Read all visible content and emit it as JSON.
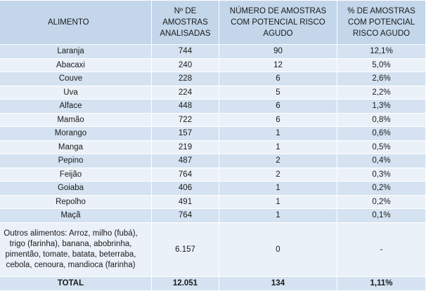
{
  "headers": {
    "alimento": "ALIMENTO",
    "amostras": "Nº DE AMOSTRAS ANALISADAS",
    "risco": "NÚMERO DE AMOSTRAS COM POTENCIAL RISCO AGUDO",
    "percent": "% DE AMOSTRAS COM POTENCIAL RISCO AGUDO"
  },
  "rows": [
    {
      "food": "Laranja",
      "samples": "744",
      "risk": "90",
      "pct": "12,1%"
    },
    {
      "food": "Abacaxi",
      "samples": "240",
      "risk": "12",
      "pct": "5,0%"
    },
    {
      "food": "Couve",
      "samples": "228",
      "risk": "6",
      "pct": "2,6%"
    },
    {
      "food": "Uva",
      "samples": "224",
      "risk": "5",
      "pct": "2,2%"
    },
    {
      "food": "Alface",
      "samples": "448",
      "risk": "6",
      "pct": "1,3%"
    },
    {
      "food": "Mamão",
      "samples": "722",
      "risk": "6",
      "pct": "0,8%"
    },
    {
      "food": "Morango",
      "samples": "157",
      "risk": "1",
      "pct": "0,6%"
    },
    {
      "food": "Manga",
      "samples": "219",
      "risk": "1",
      "pct": "0,5%"
    },
    {
      "food": "Pepino",
      "samples": "487",
      "risk": "2",
      "pct": "0,4%"
    },
    {
      "food": "Feijão",
      "samples": "764",
      "risk": "2",
      "pct": "0,3%"
    },
    {
      "food": "Goiaba",
      "samples": "406",
      "risk": "1",
      "pct": "0,2%"
    },
    {
      "food": "Repolho",
      "samples": "491",
      "risk": "1",
      "pct": "0,2%"
    },
    {
      "food": "Maçã",
      "samples": "764",
      "risk": "1",
      "pct": "0,1%"
    }
  ],
  "other": {
    "lines": [
      "Outros alimentos: Arroz, milho (fubá),",
      "trigo (farinha), banana, abobrinha,",
      "pimentão, tomate, batata, beterraba,",
      "cebola, cenoura, mandioca (farinha)"
    ],
    "samples": "6.157",
    "risk": "0",
    "pct": "-"
  },
  "total": {
    "label": "TOTAL",
    "samples": "12.051",
    "risk": "134",
    "pct": "1,11%"
  },
  "colors": {
    "header_bg": "#c3d6ea",
    "row_dark": "#d4e2f1",
    "row_light": "#ebf1f8"
  }
}
